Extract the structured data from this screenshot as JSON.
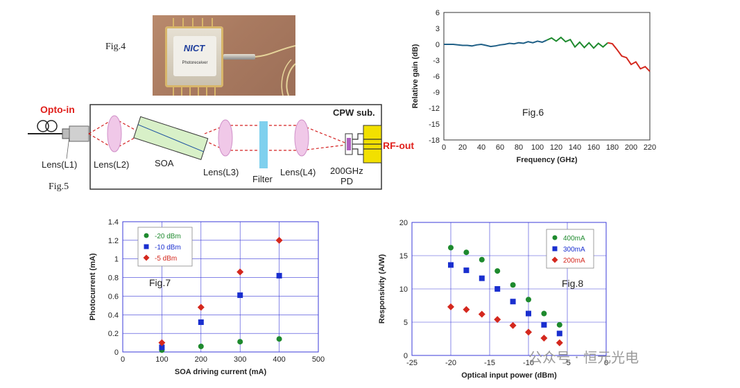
{
  "figures": {
    "fig4": "Fig.4",
    "fig5": "Fig.5",
    "fig6": "Fig.6",
    "fig7": "Fig.7",
    "fig8": "Fig.8"
  },
  "photo": {
    "logo": "NICT",
    "caption": "Photoreceiver"
  },
  "diagram": {
    "opto_in": "Opto-in",
    "rf_out": "RF-out",
    "cpw": "CPW sub.",
    "lens_l1": "Lens(L1)",
    "lens_l2": "Lens(L2)",
    "soa": "SOA",
    "lens_l3": "Lens(L3)",
    "filter": "Filter",
    "lens_l4": "Lens(L4)",
    "pd_line1": "200GHz",
    "pd_line2": "PD"
  },
  "watermark": "公众号 · 恒元光电",
  "colors": {
    "green": "#1e8a2e",
    "blue": "#1a2fcf",
    "red": "#d4281e",
    "teal": "#1f5f86",
    "grid": "#3a3ad8"
  },
  "chart_data": [
    {
      "id": "fig6",
      "type": "line",
      "xlabel": "Frequency (GHz)",
      "ylabel": "Relative gain (dB)",
      "xlim": [
        0,
        220
      ],
      "ylim": [
        -18,
        6
      ],
      "xticks": [
        0,
        20,
        40,
        60,
        80,
        100,
        120,
        140,
        160,
        180,
        200,
        220
      ],
      "yticks": [
        6,
        3,
        0,
        -3,
        -6,
        -9,
        -12,
        -15,
        -18
      ],
      "series": [
        {
          "color": "#1f5f86",
          "x": [
            0,
            5,
            10,
            15,
            20,
            25,
            30,
            35,
            40,
            45,
            50,
            55,
            60,
            65,
            70,
            75,
            80,
            85,
            90,
            95,
            100,
            105,
            110
          ],
          "y": [
            0,
            0,
            0,
            -0.1,
            -0.2,
            -0.2,
            -0.3,
            -0.1,
            0,
            -0.2,
            -0.4,
            -0.3,
            -0.1,
            0,
            0.2,
            0.1,
            0.3,
            0.2,
            0.5,
            0.3,
            0.6,
            0.4,
            0.8
          ]
        },
        {
          "color": "#1e8a2e",
          "x": [
            110,
            115,
            120,
            125,
            130,
            135,
            140,
            145,
            150,
            155,
            160,
            165,
            170,
            175
          ],
          "y": [
            0.8,
            1.2,
            0.6,
            1.3,
            0.5,
            0.9,
            -0.5,
            0.4,
            -0.6,
            0.3,
            -0.7,
            0.2,
            -0.5,
            0.3
          ]
        },
        {
          "color": "#d4281e",
          "x": [
            175,
            180,
            185,
            190,
            195,
            200,
            205,
            210,
            215,
            220
          ],
          "y": [
            0.3,
            0.1,
            -1,
            -2.2,
            -2.5,
            -3.8,
            -3.3,
            -4.6,
            -4.2,
            -5.1
          ]
        }
      ]
    },
    {
      "id": "fig7",
      "type": "scatter",
      "xlabel": "SOA driving current (mA)",
      "ylabel": "Photocurrent (mA)",
      "xlim": [
        0,
        500
      ],
      "ylim": [
        0,
        1.4
      ],
      "xticks": [
        0,
        100,
        200,
        300,
        400,
        500
      ],
      "yticks": [
        0,
        0.2,
        0.4,
        0.6,
        0.8,
        1,
        1.2,
        1.4
      ],
      "legend": "top-left",
      "series": [
        {
          "name": "-20 dBm",
          "marker": "circle",
          "color": "#1e8a2e",
          "x": [
            100,
            200,
            300,
            400
          ],
          "y": [
            0.02,
            0.06,
            0.11,
            0.14
          ]
        },
        {
          "name": "-10 dBm",
          "marker": "square",
          "color": "#1a2fcf",
          "x": [
            100,
            200,
            300,
            400
          ],
          "y": [
            0.05,
            0.32,
            0.61,
            0.82
          ]
        },
        {
          "name": "-5 dBm",
          "marker": "diamond",
          "color": "#d4281e",
          "x": [
            100,
            200,
            300,
            400
          ],
          "y": [
            0.1,
            0.48,
            0.86,
            1.2
          ]
        }
      ]
    },
    {
      "id": "fig8",
      "type": "scatter",
      "xlabel": "Optical input power (dBm)",
      "ylabel": "Responsivity (A/W)",
      "xlim": [
        -25,
        0
      ],
      "ylim": [
        0,
        20
      ],
      "xticks": [
        -25,
        -20,
        -15,
        -10,
        -5,
        0
      ],
      "yticks": [
        0,
        5,
        10,
        15,
        20
      ],
      "legend": "top-right",
      "series": [
        {
          "name": "400mA",
          "marker": "circle",
          "color": "#1e8a2e",
          "x": [
            -20,
            -18,
            -16,
            -14,
            -12,
            -10,
            -8,
            -6
          ],
          "y": [
            16.2,
            15.5,
            14.4,
            12.7,
            10.6,
            8.4,
            6.3,
            4.6
          ]
        },
        {
          "name": "300mA",
          "marker": "square",
          "color": "#1a2fcf",
          "x": [
            -20,
            -18,
            -16,
            -14,
            -12,
            -10,
            -8,
            -6
          ],
          "y": [
            13.6,
            12.8,
            11.6,
            10,
            8.1,
            6.3,
            4.6,
            3.3
          ]
        },
        {
          "name": "200mA",
          "marker": "diamond",
          "color": "#d4281e",
          "x": [
            -20,
            -18,
            -16,
            -14,
            -12,
            -10,
            -8,
            -6
          ],
          "y": [
            7.3,
            6.9,
            6.2,
            5.4,
            4.5,
            3.5,
            2.6,
            1.9
          ]
        }
      ]
    }
  ]
}
